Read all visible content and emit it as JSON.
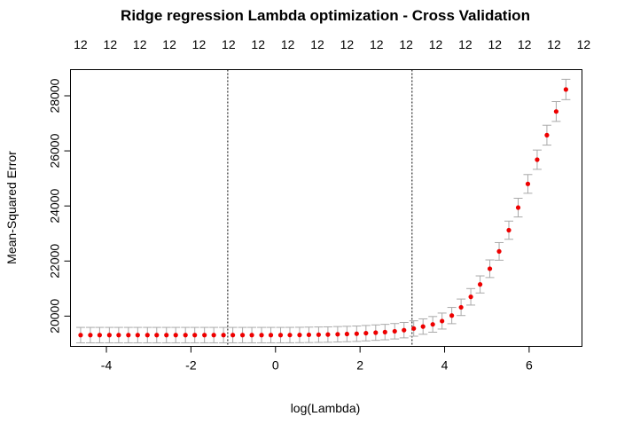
{
  "chart_data": {
    "type": "scatter",
    "title": "Ridge regression Lambda optimization - Cross Validation",
    "xlabel": "log(Lambda)",
    "ylabel": "Mean-Squared Error",
    "xlim": [
      -4.85,
      7.25
    ],
    "ylim": [
      18900,
      28950
    ],
    "x_ticks": [
      -4,
      -2,
      0,
      2,
      4,
      6
    ],
    "y_ticks": [
      20000,
      22000,
      24000,
      26000,
      28000
    ],
    "top_labels": {
      "values": [
        "12",
        "12",
        "12",
        "12",
        "12",
        "12",
        "12",
        "12",
        "12",
        "12",
        "12",
        "12",
        "12",
        "12",
        "12",
        "12",
        "12",
        "12"
      ],
      "x": [
        -4.61,
        -3.91,
        -3.21,
        -2.51,
        -1.81,
        -1.11,
        -0.41,
        0.29,
        0.99,
        1.69,
        2.39,
        3.09,
        3.79,
        4.49,
        5.19,
        5.89,
        6.59,
        7.29
      ]
    },
    "vlines": [
      -1.13,
      3.23
    ],
    "point_color": "#ee0000",
    "errorbar_color": "#a9a9a9",
    "series": [
      {
        "x": [
          -4.61,
          -4.38,
          -4.16,
          -3.93,
          -3.71,
          -3.48,
          -3.26,
          -3.03,
          -2.81,
          -2.58,
          -2.36,
          -2.13,
          -1.91,
          -1.68,
          -1.46,
          -1.23,
          -1.01,
          -0.78,
          -0.56,
          -0.33,
          -0.11,
          0.12,
          0.34,
          0.57,
          0.79,
          1.02,
          1.24,
          1.47,
          1.69,
          1.92,
          2.14,
          2.37,
          2.59,
          2.82,
          3.04,
          3.27,
          3.49,
          3.72,
          3.94,
          4.17,
          4.39,
          4.62,
          4.84,
          5.07,
          5.29,
          5.52,
          5.74,
          5.97,
          6.19,
          6.42,
          6.64,
          6.87
        ],
        "y": [
          19310,
          19310,
          19310,
          19310,
          19310,
          19310,
          19310,
          19310,
          19310,
          19310,
          19310,
          19310,
          19310,
          19310,
          19310,
          19310,
          19310,
          19310,
          19310,
          19310,
          19310,
          19310,
          19312,
          19315,
          19320,
          19325,
          19330,
          19340,
          19350,
          19360,
          19380,
          19400,
          19420,
          19450,
          19490,
          19550,
          19620,
          19700,
          19820,
          20020,
          20320,
          20700,
          21150,
          21720,
          22350,
          23120,
          23940,
          24800,
          25680,
          26570,
          27430,
          28230
        ],
        "err": [
          280,
          280,
          280,
          280,
          280,
          280,
          280,
          280,
          280,
          280,
          280,
          280,
          280,
          280,
          280,
          280,
          280,
          280,
          280,
          280,
          280,
          280,
          280,
          280,
          280,
          280,
          280,
          280,
          280,
          280,
          280,
          280,
          280,
          280,
          280,
          280,
          280,
          285,
          290,
          295,
          300,
          300,
          310,
          320,
          320,
          330,
          340,
          340,
          350,
          360,
          360,
          370
        ]
      }
    ]
  }
}
